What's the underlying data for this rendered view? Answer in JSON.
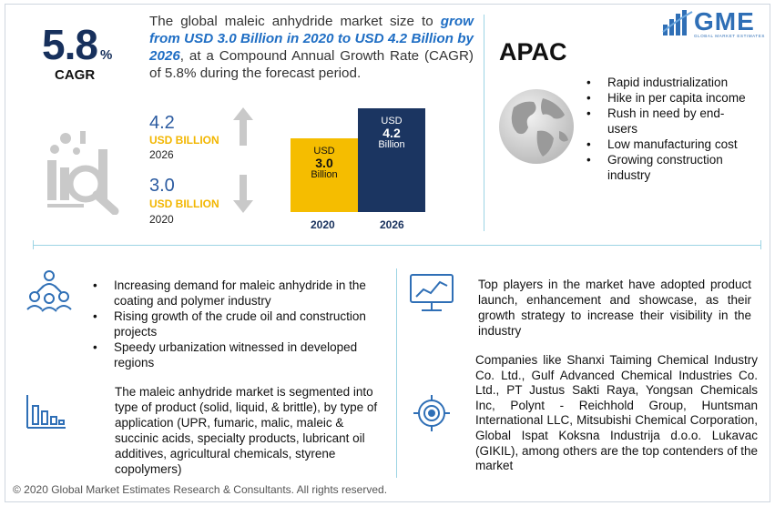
{
  "cagr": {
    "value": "5.8",
    "unit": "%",
    "label": "CAGR"
  },
  "intro": {
    "part1": "The global maleic anhydride market size to ",
    "highlight": "grow from USD 3.0 Billion in 2020 to USD 4.2 Billion by 2026",
    "part2": ", at a Compound Annual Growth Rate (CAGR) of 5.8% during the forecast period."
  },
  "logo": {
    "text": "GME",
    "subtitle": "GLOBAL MARKET ESTIMATES"
  },
  "values": {
    "v2026": {
      "amount": "4.2",
      "unit": "USD BILLION",
      "year": "2026"
    },
    "v2020": {
      "amount": "3.0",
      "unit": "USD BILLION",
      "year": "2020"
    }
  },
  "bars": {
    "b2020": {
      "top": "USD",
      "value": "3.0",
      "bottom": "Billion",
      "year": "2020",
      "amount": 3.0,
      "color": "#f5bd00"
    },
    "b2026": {
      "top": "USD",
      "value": "4.2",
      "bottom": "Billion",
      "year": "2026",
      "amount": 4.2,
      "color": "#1b3561"
    }
  },
  "region": {
    "title": "APAC",
    "items": [
      "Rapid industrialization",
      "Hike in per capita income",
      "Rush in need by end-users",
      "Low manufacturing cost",
      "Growing construction industry"
    ]
  },
  "drivers": [
    "Increasing demand for maleic anhydride in the coating and polymer industry",
    "Rising growth of the crude oil and construction projects",
    "Speedy urbanization witnessed in developed regions"
  ],
  "segmentation": "The maleic anhydride market is segmented into type of product (solid, liquid, & brittle), by type of application (UPR, fumaric, malic, maleic & succinic acids, specialty products, lubricant oil additives, agricultural chemicals, styrene copolymers)",
  "players": "Top players in the market have adopted product launch, enhancement and showcase, as their growth strategy to increase their visibility in the industry",
  "companies": "Companies like Shanxi Taiming Chemical Industry Co. Ltd., Gulf Advanced Chemical Industries Co. Ltd., PT Justus Sakti Raya, Yongsan Chemicals Inc, Polynt - Reichhold Group, Huntsman International LLC, Mitsubishi Chemical Corporation, Global Ispat Koksna Industrija d.o.o. Lukavac (GIKIL), among others are the top contenders of the market",
  "footer": "© 2020 Global Market Estimates Research & Consultants. All rights reserved.",
  "colors": {
    "navy": "#17305c",
    "gold": "#f5bd00",
    "blue": "#2f6fb6",
    "line": "#9cd4e4",
    "icon": "#c9c9c9"
  },
  "icons": [
    "analytics-magnifier-icon",
    "arrow-up-icon",
    "arrow-down-icon",
    "globe-icon",
    "people-network-icon",
    "monitor-chart-icon",
    "bar-chart-icon",
    "target-gear-icon",
    "gme-logo-icon"
  ]
}
